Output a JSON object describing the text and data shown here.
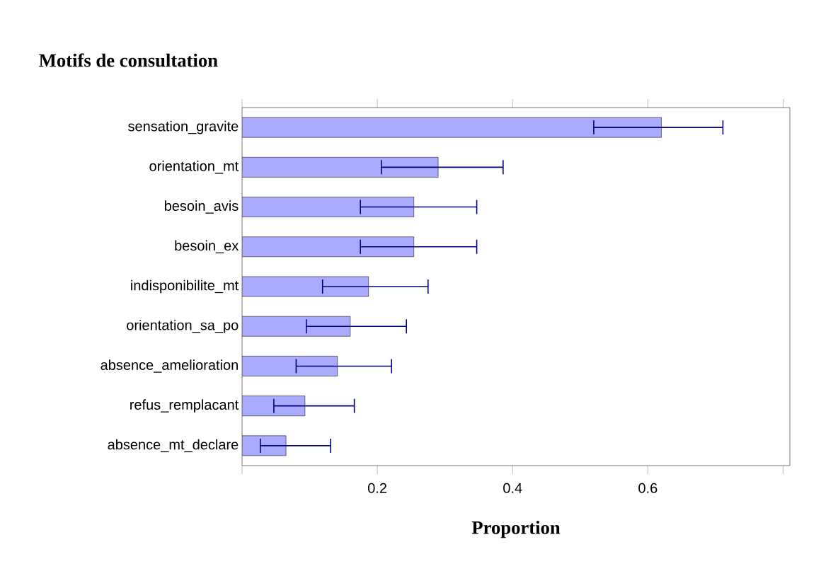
{
  "chart_data": {
    "type": "bar",
    "orientation": "horizontal",
    "title": "Motifs de consultation",
    "xlabel": "Proportion",
    "categories": [
      "sensation_gravite",
      "orientation_mt",
      "besoin_avis",
      "besoin_ex",
      "indisponibilite_mt",
      "orientation_sa_po",
      "absence_amelioration",
      "refus_remplacant",
      "absence_mt_declare"
    ],
    "values": [
      0.62,
      0.29,
      0.254,
      0.254,
      0.187,
      0.16,
      0.141,
      0.093,
      0.065
    ],
    "errors": [
      [
        0.52,
        0.711
      ],
      [
        0.206,
        0.386
      ],
      [
        0.175,
        0.347
      ],
      [
        0.175,
        0.347
      ],
      [
        0.119,
        0.275
      ],
      [
        0.095,
        0.243
      ],
      [
        0.08,
        0.221
      ],
      [
        0.047,
        0.166
      ],
      [
        0.027,
        0.131
      ]
    ],
    "color": "#aaaaff",
    "xlim": [
      0,
      0.81
    ],
    "xticks": [
      {
        "value": 0,
        "label": null
      },
      0.2,
      0.4,
      0.6,
      {
        "value": 0.8,
        "label": null
      }
    ]
  }
}
